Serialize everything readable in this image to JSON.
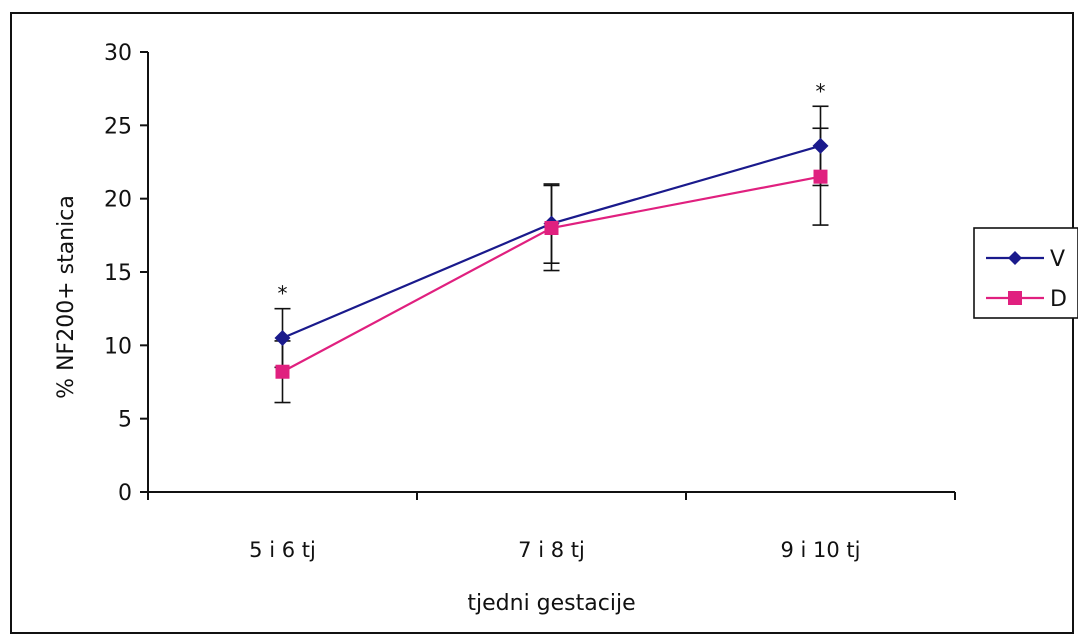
{
  "chart_data": {
    "type": "line",
    "title": "",
    "xlabel": "tjedni gestacije",
    "ylabel": "% NF200+ stanica",
    "ylim": [
      0,
      30
    ],
    "yticks": [
      0,
      5,
      10,
      15,
      20,
      25,
      30
    ],
    "categories": [
      "5 i 6 tj",
      "7 i 8 tj",
      "9 i 10 tj"
    ],
    "series": [
      {
        "name": "V",
        "color": "#1a1a8c",
        "marker": "diamond",
        "values": [
          10.5,
          18.3,
          23.6
        ],
        "error": [
          2.0,
          2.7,
          2.7
        ]
      },
      {
        "name": "D",
        "color": "#e0207f",
        "marker": "square",
        "values": [
          8.2,
          18.0,
          21.5
        ],
        "error": [
          2.1,
          2.9,
          3.3
        ]
      }
    ],
    "annotations": [
      {
        "category_index": 0,
        "text": "*"
      },
      {
        "category_index": 2,
        "text": "*"
      }
    ],
    "grid": false,
    "legend_position": "right"
  }
}
